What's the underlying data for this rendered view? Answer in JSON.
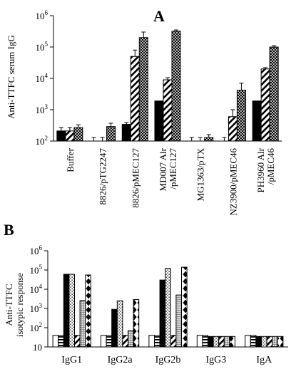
{
  "chart_data": [
    {
      "panel": "A",
      "type": "bar",
      "ylabel": "Anti-TTFC serum IgG",
      "ylim": [
        100,
        1000000
      ],
      "yscale": "log",
      "yticks": [
        {
          "v": 100,
          "b": "10",
          "e": "2"
        },
        {
          "v": 1000,
          "b": "10",
          "e": "3"
        },
        {
          "v": 10000,
          "b": "10",
          "e": "4"
        },
        {
          "v": 100000,
          "b": "10",
          "e": "5"
        },
        {
          "v": 1000000,
          "b": "10",
          "e": "6"
        }
      ],
      "categories": [
        [
          "Buffer"
        ],
        [
          "8826/pTG2247"
        ],
        [
          "8826/pMEC127"
        ],
        [
          "MD007 Alr",
          "/pMEC127"
        ],
        [
          "MG1363/pTX"
        ],
        [
          "NZ3900/pMEC46"
        ],
        [
          "PH3960 Alr",
          "/pMEC46"
        ]
      ],
      "patterns": [
        "solid",
        "diag",
        "cross"
      ],
      "series": [
        {
          "values": [
            210,
            100,
            340,
            1900,
            100,
            100,
            1900
          ],
          "err": [
            60,
            0,
            50,
            0,
            0,
            0,
            0
          ]
        },
        {
          "values": [
            210,
            100,
            50000,
            9000,
            100,
            600,
            20000
          ],
          "err": [
            60,
            0,
            30000,
            1500,
            0,
            400,
            2000
          ]
        },
        {
          "values": [
            270,
            290,
            200000,
            320000,
            130,
            4200,
            100000
          ],
          "err": [
            60,
            80,
            100000,
            30000,
            30,
            2800,
            10000
          ]
        }
      ]
    },
    {
      "panel": "B",
      "type": "bar",
      "ylabel": [
        "Anti-TTFC",
        "isotypic response"
      ],
      "ylim": [
        10,
        1000000
      ],
      "yscale": "log",
      "yticks": [
        {
          "v": 10,
          "b": "10",
          "e": ""
        },
        {
          "v": 100,
          "b": "10",
          "e": "2"
        },
        {
          "v": 1000,
          "b": "10",
          "e": "3"
        },
        {
          "v": 10000,
          "b": "10",
          "e": "4"
        },
        {
          "v": 100000,
          "b": "10",
          "e": "5"
        },
        {
          "v": 1000000,
          "b": "10",
          "e": "6"
        }
      ],
      "categories": [
        "IgG1",
        "IgG2a",
        "IgG2b",
        "IgG3",
        "IgA"
      ],
      "patterns": [
        "white",
        "hlines",
        "solid",
        "dots",
        "diag",
        "grid",
        "diamond"
      ],
      "series": [
        {
          "values": [
            40,
            40,
            40,
            40,
            40
          ]
        },
        {
          "values": [
            40,
            40,
            40,
            40,
            40
          ]
        },
        {
          "values": [
            60000,
            900,
            30000,
            35,
            35
          ]
        },
        {
          "values": [
            60000,
            2500,
            120000,
            35,
            35
          ]
        },
        {
          "values": [
            40,
            40,
            40,
            35,
            35
          ]
        },
        {
          "values": [
            2600,
            70,
            5000,
            35,
            35
          ]
        },
        {
          "values": [
            55000,
            2900,
            140000,
            35,
            35
          ]
        }
      ]
    }
  ]
}
